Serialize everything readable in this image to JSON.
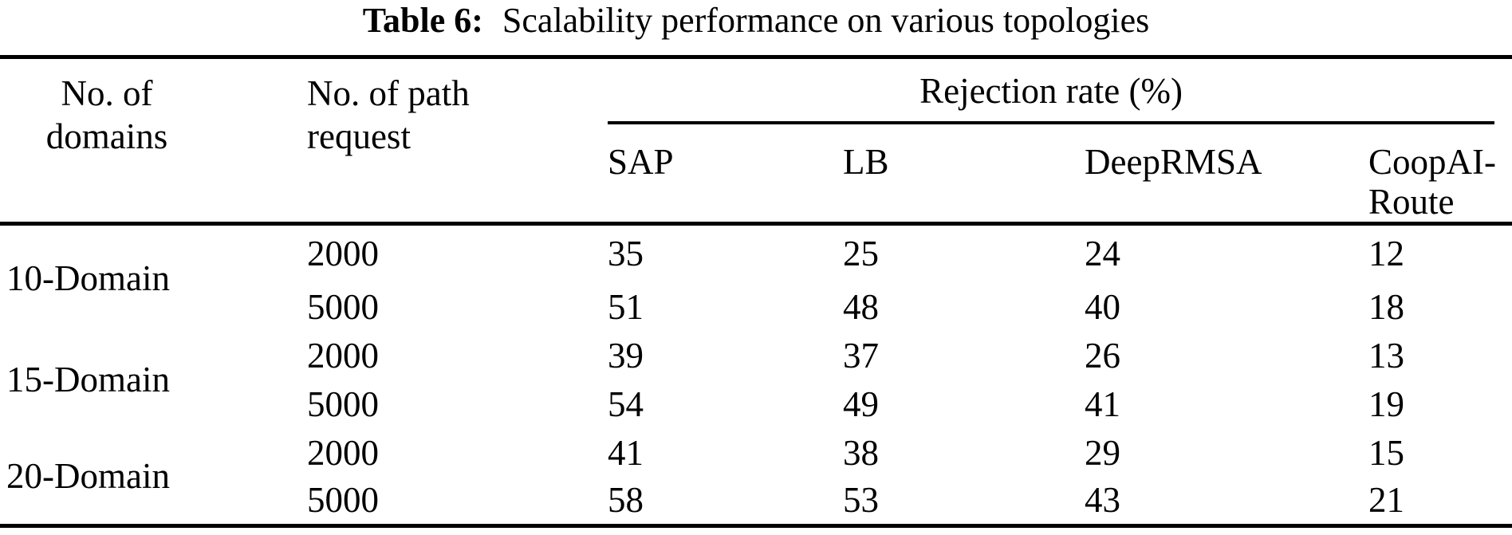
{
  "title": {
    "label": "Table 6:",
    "text": "Scalability performance on various topologies"
  },
  "table": {
    "header": {
      "domains_line1": "No. of",
      "domains_line2": "domains",
      "requests_line1": "No. of path",
      "requests_line2": "request",
      "group": "Rejection rate (%)",
      "methods": [
        "SAP",
        "LB",
        "DeepRMSA",
        "CoopAI-Route"
      ]
    },
    "groups": [
      {
        "label": "10-Domain",
        "rows": [
          {
            "requests": "2000",
            "values": [
              "35",
              "25",
              "24",
              "12"
            ]
          },
          {
            "requests": "5000",
            "values": [
              "51",
              "48",
              "40",
              "18"
            ]
          }
        ]
      },
      {
        "label": "15-Domain",
        "rows": [
          {
            "requests": "2000",
            "values": [
              "39",
              "37",
              "26",
              "13"
            ]
          },
          {
            "requests": "5000",
            "values": [
              "54",
              "49",
              "41",
              "19"
            ]
          }
        ]
      },
      {
        "label": "20-Domain",
        "rows": [
          {
            "requests": "2000",
            "values": [
              "41",
              "38",
              "29",
              "15"
            ]
          },
          {
            "requests": "5000",
            "values": [
              "58",
              "53",
              "43",
              "21"
            ]
          }
        ]
      }
    ]
  }
}
